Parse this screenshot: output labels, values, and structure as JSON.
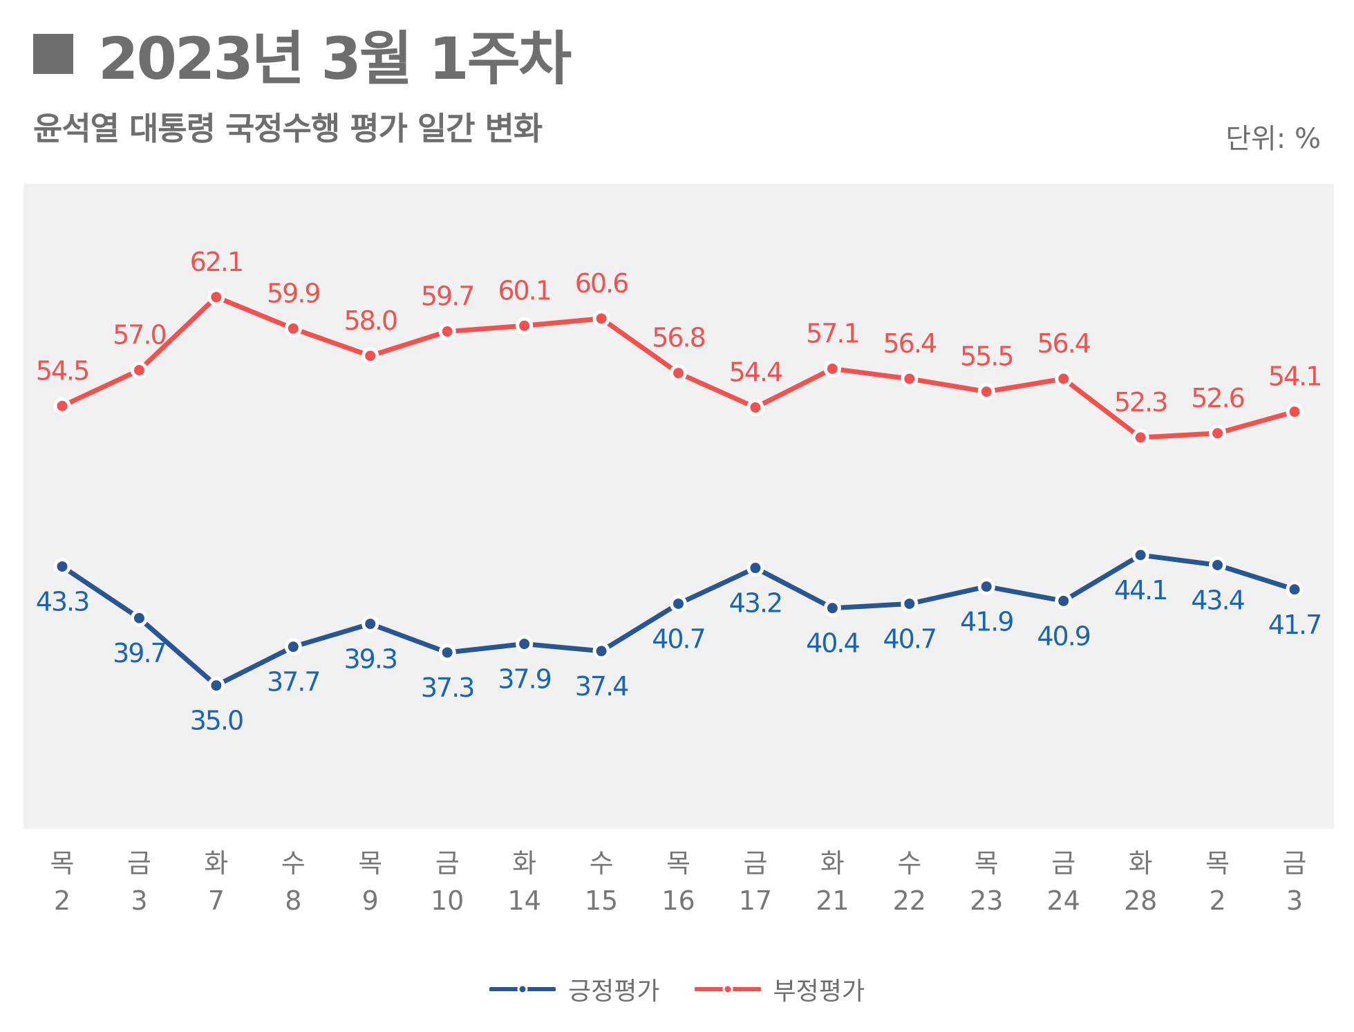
{
  "header": {
    "title": "2023년 3월 1주차",
    "subtitle": "윤석열 대통령 국정수행 평가 일간 변화",
    "unit": "단위: %"
  },
  "colors": {
    "positive": "#2a5593",
    "negative": "#f2524f",
    "positive_label": "#1a64b4",
    "negative_label": "#f2524f",
    "plot_bg": "#f1f1f1"
  },
  "chart_data": {
    "type": "line",
    "title": "윤석열 대통령 국정수행 평가 일간 변화",
    "ylabel": "단위: %",
    "ylim": [
      25,
      70
    ],
    "grid": false,
    "legend_position": "bottom",
    "categories": [
      {
        "day": "목",
        "date": "2"
      },
      {
        "day": "금",
        "date": "3"
      },
      {
        "day": "화",
        "date": "7"
      },
      {
        "day": "수",
        "date": "8"
      },
      {
        "day": "목",
        "date": "9"
      },
      {
        "day": "금",
        "date": "10"
      },
      {
        "day": "화",
        "date": "14"
      },
      {
        "day": "수",
        "date": "15"
      },
      {
        "day": "목",
        "date": "16"
      },
      {
        "day": "금",
        "date": "17"
      },
      {
        "day": "화",
        "date": "21"
      },
      {
        "day": "수",
        "date": "22"
      },
      {
        "day": "목",
        "date": "23"
      },
      {
        "day": "금",
        "date": "24"
      },
      {
        "day": "화",
        "date": "28"
      },
      {
        "day": "목",
        "date": "2"
      },
      {
        "day": "금",
        "date": "3"
      }
    ],
    "series": [
      {
        "key": "positive",
        "name": "긍정평가",
        "values": [
          43.3,
          39.7,
          35.0,
          37.7,
          39.3,
          37.3,
          37.9,
          37.4,
          40.7,
          43.2,
          40.4,
          40.7,
          41.9,
          40.9,
          44.1,
          43.4,
          41.7
        ],
        "labels": [
          "43.3",
          "39.7",
          "35.0",
          "37.7",
          "39.3",
          "37.3",
          "37.9",
          "37.4",
          "40.7",
          "43.2",
          "40.4",
          "40.7",
          "41.9",
          "40.9",
          "44.1",
          "43.4",
          "41.7"
        ],
        "label_position": "below"
      },
      {
        "key": "negative",
        "name": "부정평가",
        "values": [
          54.5,
          57.0,
          62.1,
          59.9,
          58.0,
          59.7,
          60.1,
          60.6,
          56.8,
          54.4,
          57.1,
          56.4,
          55.5,
          56.4,
          52.3,
          52.6,
          54.1
        ],
        "labels": [
          "54.5",
          "57.0",
          "62.1",
          "59.9",
          "58.0",
          "59.7",
          "60.1",
          "60.6",
          "56.8",
          "54.4",
          "57.1",
          "56.4",
          "55.5",
          "56.4",
          "52.3",
          "52.6",
          "54.1"
        ],
        "label_position": "above"
      }
    ]
  }
}
